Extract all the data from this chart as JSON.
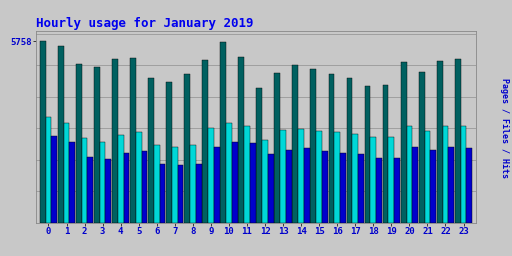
{
  "title": "Hourly usage for January 2019",
  "title_color": "#0000ee",
  "title_fontsize": 9,
  "tick_color": "#0000cc",
  "ylabel": "Pages / Files / Hits",
  "ylabel_color": "#0000cc",
  "background_color": "#c8c8c8",
  "plot_bg_color": "#c8c8c8",
  "grid_color": "#999999",
  "hours": [
    0,
    1,
    2,
    3,
    4,
    5,
    6,
    7,
    8,
    9,
    10,
    11,
    12,
    13,
    14,
    15,
    16,
    17,
    18,
    19,
    20,
    21,
    22,
    23
  ],
  "hits": [
    5758,
    5600,
    5050,
    4950,
    5200,
    5230,
    4600,
    4480,
    4720,
    5180,
    5730,
    5280,
    4280,
    4760,
    5000,
    4880,
    4730,
    4610,
    4340,
    4380,
    5100,
    4790,
    5140,
    5210
  ],
  "files": [
    3350,
    3180,
    2680,
    2580,
    2780,
    2870,
    2470,
    2420,
    2480,
    3020,
    3180,
    3080,
    2630,
    2930,
    2980,
    2920,
    2870,
    2820,
    2720,
    2720,
    3070,
    2920,
    3070,
    3080
  ],
  "pages": [
    2750,
    2570,
    2080,
    2020,
    2220,
    2270,
    1870,
    1820,
    1870,
    2420,
    2570,
    2520,
    2170,
    2320,
    2370,
    2270,
    2220,
    2170,
    2070,
    2070,
    2420,
    2320,
    2420,
    2370
  ],
  "hits_color": "#006060",
  "files_color": "#00d8d8",
  "pages_color": "#0000cc",
  "ylim": [
    0,
    6100
  ],
  "ytick_value": 5758,
  "bar_width": 0.32,
  "figwidth": 5.12,
  "figheight": 2.56,
  "dpi": 100
}
